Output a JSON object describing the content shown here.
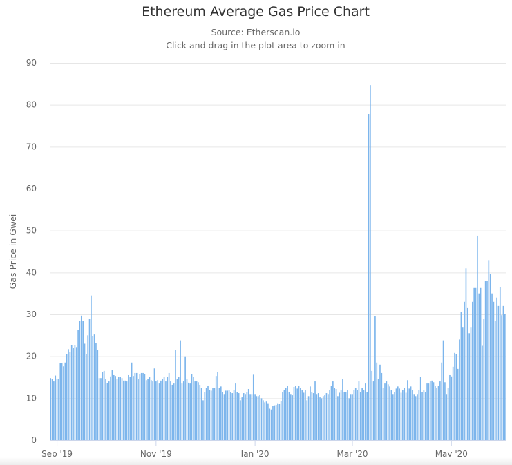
{
  "chart_data": {
    "type": "bar",
    "title": "Ethereum Average Gas Price Chart",
    "subtitle": "Source: Etherscan.io",
    "hint": "Click and drag in the plot area to zoom in",
    "xlabel": "",
    "ylabel": "Gas Price in Gwei",
    "ylim": [
      0,
      90
    ],
    "yticks": [
      0,
      10,
      20,
      30,
      40,
      50,
      60,
      70,
      80,
      90
    ],
    "xticks": [
      {
        "date": "2019-09-01",
        "label": "Sep '19"
      },
      {
        "date": "2019-11-01",
        "label": "Nov '19"
      },
      {
        "date": "2020-01-01",
        "label": "Jan '20"
      },
      {
        "date": "2020-03-01",
        "label": "Mar '20"
      },
      {
        "date": "2020-05-01",
        "label": "May '20"
      }
    ],
    "grid": true,
    "legend": "none",
    "color": "#7cb5ec",
    "daily_by_month": [
      {
        "month": "2019-08",
        "first_day": 28,
        "values": [
          14.8,
          14.5,
          14,
          15.4
        ]
      },
      {
        "month": "2019-09",
        "first_day": 1,
        "values": [
          14.6,
          14.6,
          18.3,
          18.3,
          17.6,
          18.5,
          20.5,
          21.7,
          21,
          22.6,
          22,
          22.6,
          22.2,
          26.3,
          28.5,
          29.7,
          28.5,
          23,
          20.5,
          25,
          29,
          34.5,
          24.8,
          25.2,
          23.2,
          21.5,
          14.8,
          14.8,
          16.3,
          16.5
        ]
      },
      {
        "month": "2019-10",
        "first_day": 1,
        "values": [
          14.5,
          13.6,
          14,
          15.2,
          16.8,
          15.5,
          15.3,
          14.5,
          15,
          15,
          14.8,
          14.2,
          14.2,
          14,
          15.5,
          15,
          18.5,
          15.3,
          16,
          16,
          14.5,
          15.8,
          16,
          16,
          15.8,
          14.3,
          14.6,
          15,
          14.3,
          14,
          17.1
        ]
      },
      {
        "month": "2019-11",
        "first_day": 1,
        "values": [
          14,
          14.3,
          13.5,
          14.2,
          14.5,
          15,
          14,
          15,
          16,
          14,
          13.2,
          13.5,
          21.5,
          14.5,
          15,
          23.8,
          13.5,
          14,
          20,
          14.5,
          13.7,
          13.5,
          15.8,
          15,
          14,
          14,
          13.8,
          13.2,
          12.5,
          9.5
        ]
      },
      {
        "month": "2019-12",
        "first_day": 1,
        "values": [
          11.5,
          12.5,
          13,
          12,
          11.8,
          12.5,
          12.5,
          15.3,
          16.3,
          12.5,
          12.8,
          11.5,
          11,
          11.8,
          11.8,
          12,
          11.5,
          11.2,
          12,
          13.5,
          11.5,
          11.2,
          9.5,
          10.2,
          11.2,
          11,
          11.5,
          12.2,
          11,
          11,
          15.6
        ]
      },
      {
        "month": "2020-01",
        "first_day": 1,
        "values": [
          11,
          10.5,
          10.5,
          10.8,
          10,
          9.5,
          9,
          9.2,
          8.8,
          7.5,
          7.3,
          8.2,
          8.3,
          8.4,
          8.8,
          8.6,
          9.3,
          11.5,
          12,
          12.5,
          13,
          11.5,
          11,
          10.7,
          12.7,
          12.9,
          12.3,
          13,
          12.5,
          12,
          11.3
        ]
      },
      {
        "month": "2020-02",
        "first_day": 1,
        "values": [
          12,
          9.5,
          10.5,
          12.8,
          11.5,
          11.2,
          14,
          11,
          11.2,
          10.2,
          10,
          10.5,
          10.7,
          11.2,
          11,
          12,
          13,
          14,
          12.5,
          12.2,
          10.5,
          11.3,
          12,
          14.5,
          11.5,
          11.5,
          12,
          10,
          11
        ]
      },
      {
        "month": "2020-03",
        "first_day": 1,
        "values": [
          11,
          12,
          12.5,
          12,
          14,
          11.5,
          12.5,
          12,
          13.5,
          11.5,
          77.8,
          84.7,
          16.5,
          14,
          29.5,
          18.5,
          14.5,
          18,
          16,
          12.5,
          13.5,
          14,
          13.3,
          12.8,
          12,
          11,
          11.5,
          12.3,
          12.8,
          12.3,
          11.3
        ]
      },
      {
        "month": "2020-04",
        "first_day": 1,
        "values": [
          12,
          12.5,
          11.3,
          14.3,
          12.3,
          12.8,
          12,
          11,
          10.5,
          11,
          12,
          15,
          11.5,
          12,
          11.5,
          13.5,
          13.5,
          14,
          14.2,
          13.8,
          13,
          12.5,
          13,
          14,
          18.5,
          23.8,
          13.8,
          11,
          12.5,
          15.5
        ]
      },
      {
        "month": "2020-05",
        "first_day": 1,
        "values": [
          15.2,
          17.5,
          20.8,
          20.5,
          17,
          24,
          30.5,
          27,
          33,
          41,
          31.5,
          25.5,
          27,
          33,
          36.3,
          36.3,
          48.8,
          35,
          36.3,
          22.5,
          29,
          38,
          38,
          42.8,
          39.7,
          35,
          33,
          28.5,
          34,
          32,
          36.5
        ]
      },
      {
        "month": "2020-06",
        "first_day": 1,
        "values": [
          29.8,
          32,
          30
        ]
      }
    ]
  }
}
